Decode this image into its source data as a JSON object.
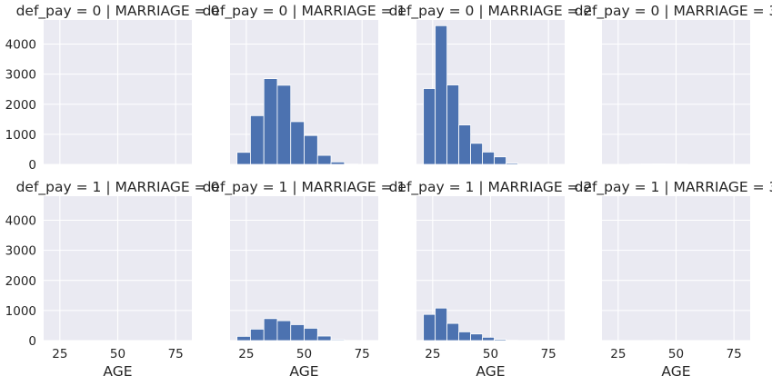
{
  "chart_data": {
    "type": "bar",
    "row_var": "def_pay",
    "col_var": "MARRIAGE",
    "xlabel": "AGE",
    "ylabel": "",
    "xlim": [
      18,
      82
    ],
    "ylim": [
      0,
      4800
    ],
    "xticks": [
      25,
      50,
      75
    ],
    "yticks": [
      0,
      1000,
      2000,
      3000,
      4000
    ],
    "grid": true,
    "panels": [
      {
        "title": "def_pay = 0 | MARRIAGE = 0",
        "row": 0,
        "col": 0,
        "bins": []
      },
      {
        "title": "def_pay = 0 | MARRIAGE = 1",
        "row": 0,
        "col": 1,
        "bins": [
          {
            "x0": 21,
            "x1": 26.8,
            "value": 400
          },
          {
            "x0": 26.8,
            "x1": 32.6,
            "value": 1620
          },
          {
            "x0": 32.6,
            "x1": 38.4,
            "value": 2850
          },
          {
            "x0": 38.4,
            "x1": 44.2,
            "value": 2630
          },
          {
            "x0": 44.2,
            "x1": 50,
            "value": 1420
          },
          {
            "x0": 50,
            "x1": 55.8,
            "value": 960
          },
          {
            "x0": 55.8,
            "x1": 61.6,
            "value": 300
          },
          {
            "x0": 61.6,
            "x1": 67.4,
            "value": 80
          },
          {
            "x0": 67.4,
            "x1": 73.2,
            "value": 10
          },
          {
            "x0": 73.2,
            "x1": 79,
            "value": 2
          }
        ]
      },
      {
        "title": "def_pay = 0 | MARRIAGE = 2",
        "row": 0,
        "col": 2,
        "bins": [
          {
            "x0": 21,
            "x1": 26.1,
            "value": 2520
          },
          {
            "x0": 26.1,
            "x1": 31.2,
            "value": 4610
          },
          {
            "x0": 31.2,
            "x1": 36.3,
            "value": 2640
          },
          {
            "x0": 36.3,
            "x1": 41.4,
            "value": 1310
          },
          {
            "x0": 41.4,
            "x1": 46.5,
            "value": 700
          },
          {
            "x0": 46.5,
            "x1": 51.6,
            "value": 410
          },
          {
            "x0": 51.6,
            "x1": 56.7,
            "value": 250
          },
          {
            "x0": 56.7,
            "x1": 61.8,
            "value": 40
          },
          {
            "x0": 61.8,
            "x1": 66.9,
            "value": 8
          },
          {
            "x0": 66.9,
            "x1": 72,
            "value": 2
          }
        ]
      },
      {
        "title": "def_pay = 0 | MARRIAGE = 3",
        "row": 0,
        "col": 3,
        "bins": [
          {
            "x0": 30,
            "x1": 35,
            "value": 10
          },
          {
            "x0": 35,
            "x1": 40,
            "value": 14
          },
          {
            "x0": 40,
            "x1": 45,
            "value": 16
          },
          {
            "x0": 45,
            "x1": 50,
            "value": 14
          },
          {
            "x0": 50,
            "x1": 55,
            "value": 8
          }
        ]
      },
      {
        "title": "def_pay = 1 | MARRIAGE = 0",
        "row": 1,
        "col": 0,
        "bins": []
      },
      {
        "title": "def_pay = 1 | MARRIAGE = 1",
        "row": 1,
        "col": 1,
        "bins": [
          {
            "x0": 21,
            "x1": 26.8,
            "value": 140
          },
          {
            "x0": 26.8,
            "x1": 32.6,
            "value": 380
          },
          {
            "x0": 32.6,
            "x1": 38.4,
            "value": 730
          },
          {
            "x0": 38.4,
            "x1": 44.2,
            "value": 660
          },
          {
            "x0": 44.2,
            "x1": 50,
            "value": 530
          },
          {
            "x0": 50,
            "x1": 55.8,
            "value": 410
          },
          {
            "x0": 55.8,
            "x1": 61.6,
            "value": 150
          },
          {
            "x0": 61.6,
            "x1": 67.4,
            "value": 30
          },
          {
            "x0": 67.4,
            "x1": 73.2,
            "value": 5
          },
          {
            "x0": 73.2,
            "x1": 79,
            "value": 1
          }
        ]
      },
      {
        "title": "def_pay = 1 | MARRIAGE = 2",
        "row": 1,
        "col": 2,
        "bins": [
          {
            "x0": 21,
            "x1": 26.1,
            "value": 870
          },
          {
            "x0": 26.1,
            "x1": 31.2,
            "value": 1080
          },
          {
            "x0": 31.2,
            "x1": 36.3,
            "value": 570
          },
          {
            "x0": 36.3,
            "x1": 41.4,
            "value": 290
          },
          {
            "x0": 41.4,
            "x1": 46.5,
            "value": 220
          },
          {
            "x0": 46.5,
            "x1": 51.6,
            "value": 110
          },
          {
            "x0": 51.6,
            "x1": 56.7,
            "value": 40
          },
          {
            "x0": 56.7,
            "x1": 61.8,
            "value": 10
          },
          {
            "x0": 61.8,
            "x1": 66.9,
            "value": 3
          },
          {
            "x0": 66.9,
            "x1": 72,
            "value": 1
          }
        ]
      },
      {
        "title": "def_pay = 1 | MARRIAGE = 3",
        "row": 1,
        "col": 3,
        "bins": [
          {
            "x0": 35,
            "x1": 40,
            "value": 3
          },
          {
            "x0": 40,
            "x1": 45,
            "value": 5
          },
          {
            "x0": 45,
            "x1": 50,
            "value": 3
          }
        ]
      }
    ]
  }
}
